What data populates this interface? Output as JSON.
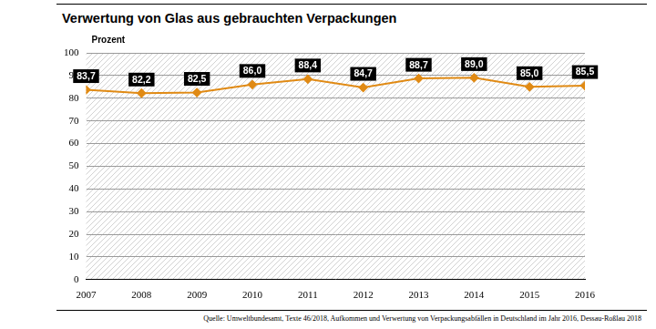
{
  "chart_data": {
    "type": "line",
    "title": "Verwertung von Glas aus gebrauchten Verpackungen",
    "y_label": "Prozent",
    "source": "Quelle: Umweltbundesamt, Texte 46/2018, Aufkommen und Verwertung von Verpackungsabfällen in Deutschland im Jahr 2016, Dessau-Roßlau 2018",
    "categories": [
      "2007",
      "2008",
      "2009",
      "2010",
      "2011",
      "2012",
      "2013",
      "2014",
      "2015",
      "2016"
    ],
    "values": [
      83.7,
      82.2,
      82.5,
      86.0,
      88.4,
      84.7,
      88.7,
      89.0,
      85.0,
      85.5
    ],
    "value_labels": [
      "83,7",
      "82,2",
      "82,5",
      "86,0",
      "88,4",
      "84,7",
      "88,7",
      "89,0",
      "85,0",
      "85,5"
    ],
    "data_labels": true,
    "color": "#e08a14",
    "marker": "diamond",
    "line_style": "solid",
    "ylim": [
      0,
      100
    ],
    "yticks": [
      0,
      10,
      20,
      30,
      40,
      50,
      60,
      70,
      80,
      90,
      100
    ],
    "grid": true
  }
}
